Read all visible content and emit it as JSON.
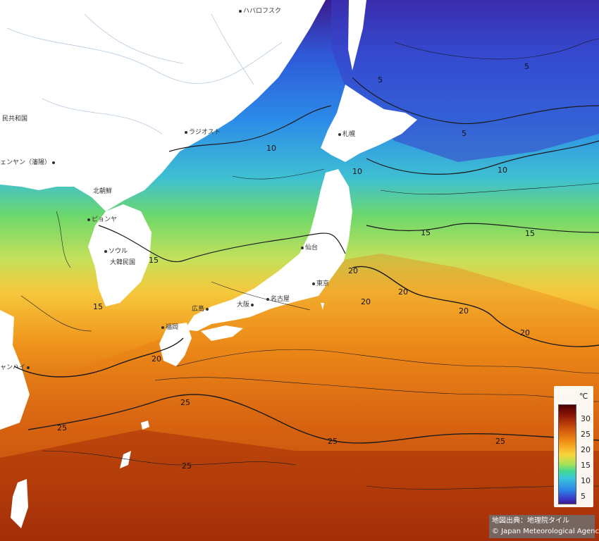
{
  "legend": {
    "unit": "℃",
    "ticks": [
      "30",
      "25",
      "20",
      "15",
      "10",
      "5"
    ]
  },
  "contour_labels": [
    "5",
    "5",
    "5",
    "10",
    "10",
    "10",
    "15",
    "15",
    "15",
    "15",
    "20",
    "20",
    "20",
    "20",
    "20",
    "25",
    "25",
    "25",
    "25",
    "25"
  ],
  "places": [
    {
      "id": "khabarovsk",
      "label": "ハバロフスク"
    },
    {
      "id": "prc",
      "label": "民共和国"
    },
    {
      "id": "vladivostok",
      "label": "ラジオスト"
    },
    {
      "id": "shenyang",
      "label": "ェンヤン（瀋陽）"
    },
    {
      "id": "dprk",
      "label": "北朝鮮"
    },
    {
      "id": "pyongyang",
      "label": "ピョンヤ"
    },
    {
      "id": "seoul",
      "label": "ソウル"
    },
    {
      "id": "rok",
      "label": "大韓民国"
    },
    {
      "id": "sapporo",
      "label": "札幌"
    },
    {
      "id": "sendai",
      "label": "仙台"
    },
    {
      "id": "tokyo",
      "label": "東京"
    },
    {
      "id": "nagoya",
      "label": "名古屋"
    },
    {
      "id": "osaka",
      "label": "大阪"
    },
    {
      "id": "hiroshima",
      "label": "広島"
    },
    {
      "id": "fukuoka",
      "label": "福岡"
    },
    {
      "id": "shanghai",
      "label": "ャンハイ"
    }
  ],
  "credit": {
    "line1": "地図出典：地理院タイル",
    "line2": "© Japan Meteorological Agency"
  },
  "colors": {
    "water_cold": "#3b1a8e",
    "water_warm": "#8a1405",
    "land": "#ffffff"
  }
}
